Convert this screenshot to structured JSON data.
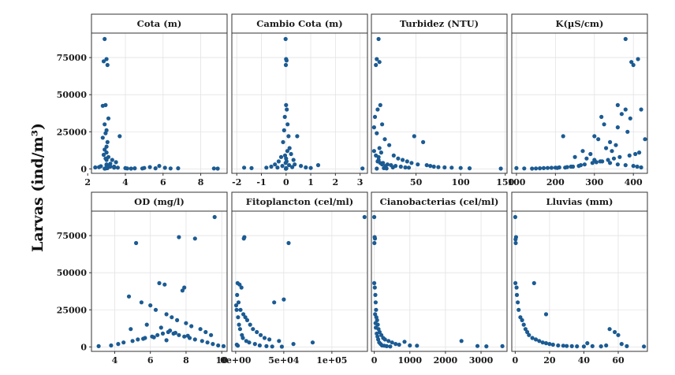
{
  "figure": {
    "ylabel": "Larvas (ind/m³)",
    "point_color": "#1b5b93"
  },
  "chart_data": [
    {
      "type": "scatter",
      "title": "Cota (m)",
      "xlim": [
        2.2,
        9.4
      ],
      "ylim": [
        -3000,
        91500
      ],
      "xticks": [
        2,
        4,
        6,
        8
      ],
      "xticklabels": [
        "2",
        "4",
        "6",
        "8"
      ],
      "yticks": [
        0,
        25000,
        50000,
        75000
      ],
      "yticklabels": [
        "0",
        "25000",
        "50000",
        "75000"
      ],
      "x": [
        2.9,
        3.0,
        2.85,
        3.05,
        2.95,
        2.8,
        3.1,
        2.9,
        3.0,
        2.95,
        2.8,
        3.05,
        3.0,
        2.9,
        3.0,
        2.85,
        3.1,
        2.95,
        3.0,
        3.7,
        3.3,
        3.5,
        3.2,
        3.0,
        2.7,
        2.6,
        3.4,
        3.6,
        4.0,
        4.1,
        4.3,
        4.5,
        4.9,
        5.0,
        5.3,
        5.6,
        5.8,
        6.1,
        6.4,
        6.8,
        8.7,
        8.9,
        2.4,
        3.2,
        3.4,
        2.95,
        3.05,
        2.9,
        3.0,
        3.1
      ],
      "y": [
        87500,
        74000,
        72500,
        70000,
        43000,
        42500,
        34000,
        30000,
        26000,
        24000,
        21000,
        18000,
        15000,
        13000,
        11000,
        9500,
        8000,
        7000,
        6000,
        22000,
        6000,
        4500,
        3500,
        2500,
        1800,
        1200,
        1500,
        800,
        500,
        300,
        200,
        400,
        300,
        600,
        1200,
        400,
        2000,
        700,
        300,
        400,
        300,
        200,
        1000,
        1500,
        800,
        300,
        500,
        200,
        3000,
        2000
      ]
    },
    {
      "type": "scatter",
      "title": "Cambio Cota (m)",
      "xlim": [
        -2.2,
        3.3
      ],
      "ylim": [
        -3000,
        91500
      ],
      "xticks": [
        -2,
        -1,
        0,
        1,
        2,
        3
      ],
      "xticklabels": [
        "-2",
        "-1",
        "0",
        "1",
        "2",
        "3"
      ],
      "yticks": [
        0,
        25000,
        50000,
        75000
      ],
      "yticklabels": [
        "0",
        "25000",
        "50000",
        "75000"
      ],
      "x": [
        -0.02,
        0.0,
        0.02,
        -0.01,
        0.0,
        0.03,
        -0.05,
        0.06,
        -0.08,
        0.1,
        -0.12,
        0.14,
        0.2,
        -0.2,
        0.3,
        -0.3,
        0.45,
        -0.45,
        0.6,
        -0.6,
        0.8,
        -0.8,
        1.0,
        1.3,
        -1.4,
        -1.7,
        3.1,
        0.05,
        -0.04,
        0.0,
        0.02,
        -0.02,
        0.35,
        0.12,
        -0.15,
        0.25,
        -0.35,
        0.0,
        0.01,
        -0.01
      ],
      "y": [
        87500,
        74000,
        73000,
        70000,
        43000,
        40000,
        35000,
        30000,
        26000,
        22000,
        18000,
        14000,
        10000,
        8000,
        6000,
        5000,
        22000,
        3000,
        2000,
        1500,
        1000,
        800,
        600,
        2500,
        500,
        800,
        300,
        12000,
        9000,
        7000,
        5000,
        4000,
        3000,
        2500,
        2000,
        1200,
        900,
        500,
        300,
        100
      ]
    },
    {
      "type": "scatter",
      "title": "Turbidez (NTU)",
      "xlim": [
        0,
        152
      ],
      "ylim": [
        -3000,
        91500
      ],
      "xticks": [
        50,
        100,
        150
      ],
      "xticklabels": [
        "50",
        "100",
        "150"
      ],
      "yticks": [
        0,
        25000,
        50000,
        75000
      ],
      "yticklabels": [
        "0",
        "25000",
        "50000",
        "75000"
      ],
      "x": [
        8,
        6,
        9,
        5,
        10,
        7,
        4,
        12,
        3,
        6,
        15,
        20,
        9,
        11,
        25,
        8,
        30,
        35,
        40,
        45,
        48,
        52,
        58,
        62,
        66,
        70,
        75,
        82,
        90,
        100,
        110,
        145,
        7,
        13,
        18,
        22,
        27,
        33,
        38,
        42,
        3,
        5,
        8,
        10,
        12,
        16,
        24,
        14,
        17,
        6
      ],
      "y": [
        87500,
        74000,
        72000,
        70000,
        43000,
        40000,
        35000,
        30000,
        28000,
        24000,
        20000,
        16000,
        14000,
        11000,
        9000,
        8000,
        7000,
        6000,
        5000,
        4000,
        22000,
        3000,
        18000,
        2500,
        2000,
        1500,
        1200,
        1000,
        800,
        600,
        400,
        200,
        5000,
        4000,
        3000,
        2500,
        2000,
        1500,
        1000,
        800,
        12000,
        9000,
        6000,
        4000,
        3000,
        2000,
        1000,
        500,
        300,
        200
      ]
    },
    {
      "type": "scatter",
      "title": "K(µS/cm)",
      "xlim": [
        88,
        436
      ],
      "ylim": [
        -3000,
        91500
      ],
      "xticks": [
        100,
        200,
        300,
        400
      ],
      "xticklabels": [
        "100",
        "200",
        "300",
        "400"
      ],
      "yticks": [
        0,
        25000,
        50000,
        75000
      ],
      "yticklabels": [
        "0",
        "25000",
        "50000",
        "75000"
      ],
      "x": [
        380,
        412,
        395,
        400,
        360,
        380,
        370,
        392,
        420,
        430,
        318,
        325,
        360,
        385,
        300,
        310,
        340,
        355,
        330,
        270,
        290,
        220,
        250,
        280,
        300,
        320,
        340,
        360,
        380,
        400,
        410,
        420,
        100,
        120,
        140,
        160,
        180,
        200,
        210,
        230,
        240,
        260,
        150,
        170,
        190,
        275,
        295,
        315,
        335,
        350,
        365,
        390,
        405,
        415,
        345,
        305,
        265,
        245,
        225,
        205
      ],
      "y": [
        87500,
        74000,
        72000,
        70000,
        43000,
        40000,
        37000,
        34000,
        40000,
        20000,
        35000,
        30000,
        28000,
        25000,
        22000,
        20000,
        18000,
        16000,
        14000,
        12000,
        10000,
        22000,
        8000,
        7000,
        6000,
        5000,
        4000,
        3000,
        2500,
        2000,
        1500,
        1000,
        500,
        300,
        200,
        400,
        600,
        800,
        1000,
        1200,
        1500,
        2000,
        300,
        500,
        700,
        3000,
        4000,
        5000,
        6000,
        7000,
        8000,
        9000,
        10000,
        11000,
        12000,
        4500,
        2500,
        1500,
        900,
        600
      ]
    },
    {
      "type": "scatter",
      "title": "OD (mg/l)",
      "xlim": [
        2.7,
        10.3
      ],
      "ylim": [
        -3000,
        91500
      ],
      "xticks": [
        4,
        6,
        8,
        10
      ],
      "xticklabels": [
        "4",
        "6",
        "8",
        "10"
      ],
      "yticks": [
        0,
        25000,
        50000,
        75000
      ],
      "yticklabels": [
        "0",
        "25000",
        "50000",
        "75000"
      ],
      "x": [
        9.6,
        7.6,
        8.5,
        5.2,
        6.5,
        6.8,
        7.9,
        7.8,
        4.8,
        5.5,
        6.0,
        6.3,
        6.9,
        7.2,
        7.5,
        8.0,
        8.3,
        8.8,
        9.1,
        9.4,
        3.1,
        3.8,
        4.2,
        4.5,
        5.0,
        5.3,
        5.7,
        6.1,
        6.4,
        6.7,
        7.0,
        7.3,
        7.6,
        7.9,
        8.2,
        8.5,
        8.9,
        9.2,
        9.5,
        9.8,
        10.1,
        4.9,
        5.8,
        6.6,
        7.1,
        7.4,
        8.1,
        6.2,
        5.6,
        6.9
      ],
      "y": [
        87500,
        74000,
        73000,
        70000,
        43000,
        42000,
        40000,
        38000,
        34000,
        30000,
        28000,
        25000,
        22000,
        20000,
        18000,
        16000,
        14000,
        12000,
        10000,
        8000,
        500,
        1000,
        2000,
        3000,
        4000,
        5000,
        6000,
        7000,
        8000,
        9000,
        10000,
        9000,
        8000,
        7000,
        6000,
        5000,
        4000,
        3000,
        2000,
        1000,
        500,
        12000,
        15000,
        13000,
        11000,
        9500,
        7500,
        6500,
        5500,
        4500
      ]
    },
    {
      "type": "scatter",
      "title": "Fitoplancton (cel/ml)",
      "xlim": [
        -4000,
        137000
      ],
      "ylim": [
        -3000,
        91500
      ],
      "xticks": [
        0,
        50000,
        100000
      ],
      "xticklabels": [
        "0e+00",
        "5e+04",
        "1e+05"
      ],
      "yticks": [
        0,
        25000,
        50000,
        75000
      ],
      "yticklabels": [
        "0",
        "25000",
        "50000",
        "75000"
      ],
      "x": [
        134000,
        9000,
        8500,
        55000,
        2000,
        4000,
        6000,
        1500,
        3000,
        5000,
        8000,
        10000,
        12000,
        15000,
        18000,
        22000,
        26000,
        30000,
        35000,
        40000,
        45000,
        50000,
        60000,
        80000,
        500,
        1000,
        2500,
        3500,
        4500,
        6500,
        7500,
        11000,
        14000,
        20000,
        25000,
        32000,
        38000,
        48000,
        1200,
        2200
      ],
      "y": [
        87500,
        74000,
        73000,
        70000,
        43000,
        42000,
        40000,
        35000,
        30000,
        25000,
        22000,
        20000,
        18000,
        15000,
        12000,
        10000,
        8000,
        6000,
        5000,
        30000,
        4000,
        32000,
        2000,
        3000,
        28000,
        25000,
        20000,
        15000,
        12000,
        8000,
        6000,
        4000,
        3000,
        2000,
        1000,
        500,
        300,
        200,
        1500,
        800
      ]
    },
    {
      "type": "scatter",
      "title": "Cianobacterias (cel/ml)",
      "xlim": [
        -80,
        3730
      ],
      "ylim": [
        -3000,
        91500
      ],
      "xticks": [
        0,
        1000,
        2000,
        3000
      ],
      "xticklabels": [
        "0",
        "1000",
        "2000",
        "3000"
      ],
      "yticks": [
        0,
        25000,
        50000,
        75000
      ],
      "yticklabels": [
        "0",
        "25000",
        "50000",
        "75000"
      ],
      "x": [
        0,
        10,
        20,
        5,
        0,
        15,
        30,
        40,
        50,
        60,
        80,
        100,
        120,
        150,
        200,
        250,
        300,
        400,
        500,
        600,
        700,
        850,
        1000,
        1200,
        2450,
        2900,
        3150,
        3600,
        25,
        35,
        45,
        70,
        90,
        110,
        140,
        180,
        220,
        280,
        350,
        450
      ],
      "y": [
        87500,
        74000,
        73000,
        70000,
        43000,
        40000,
        35000,
        30000,
        25000,
        20000,
        18000,
        15000,
        12000,
        10000,
        8000,
        6000,
        5000,
        4000,
        3000,
        2000,
        1500,
        3500,
        1000,
        800,
        4000,
        600,
        400,
        500,
        22000,
        16000,
        13000,
        9000,
        7000,
        5000,
        3000,
        2000,
        1000,
        800,
        500,
        300
      ]
    },
    {
      "type": "scatter",
      "title": "Lluvias (mm)",
      "xlim": [
        -2,
        77
      ],
      "ylim": [
        -3000,
        91500
      ],
      "xticks": [
        0,
        20,
        40,
        60
      ],
      "xticklabels": [
        "0",
        "20",
        "40",
        "60"
      ],
      "yticks": [
        0,
        25000,
        50000,
        75000
      ],
      "yticklabels": [
        "0",
        "25000",
        "50000",
        "75000"
      ],
      "x": [
        0,
        0.5,
        0.2,
        0.3,
        0.1,
        0.8,
        1,
        1.5,
        2,
        3,
        4,
        5,
        6,
        7,
        8,
        10,
        12,
        14,
        16,
        18,
        20,
        22,
        25,
        28,
        30,
        33,
        36,
        40,
        42,
        45,
        50,
        53,
        55,
        58,
        60,
        62,
        65,
        75,
        11,
        18
      ],
      "y": [
        87500,
        74000,
        72500,
        70000,
        43000,
        40000,
        35000,
        30000,
        25000,
        20000,
        18000,
        15000,
        12000,
        10000,
        8000,
        6000,
        5000,
        4000,
        3000,
        2500,
        2000,
        1500,
        1000,
        800,
        600,
        500,
        400,
        300,
        2500,
        500,
        400,
        1000,
        12000,
        10000,
        8000,
        2000,
        500,
        300,
        43000,
        22000
      ]
    }
  ]
}
